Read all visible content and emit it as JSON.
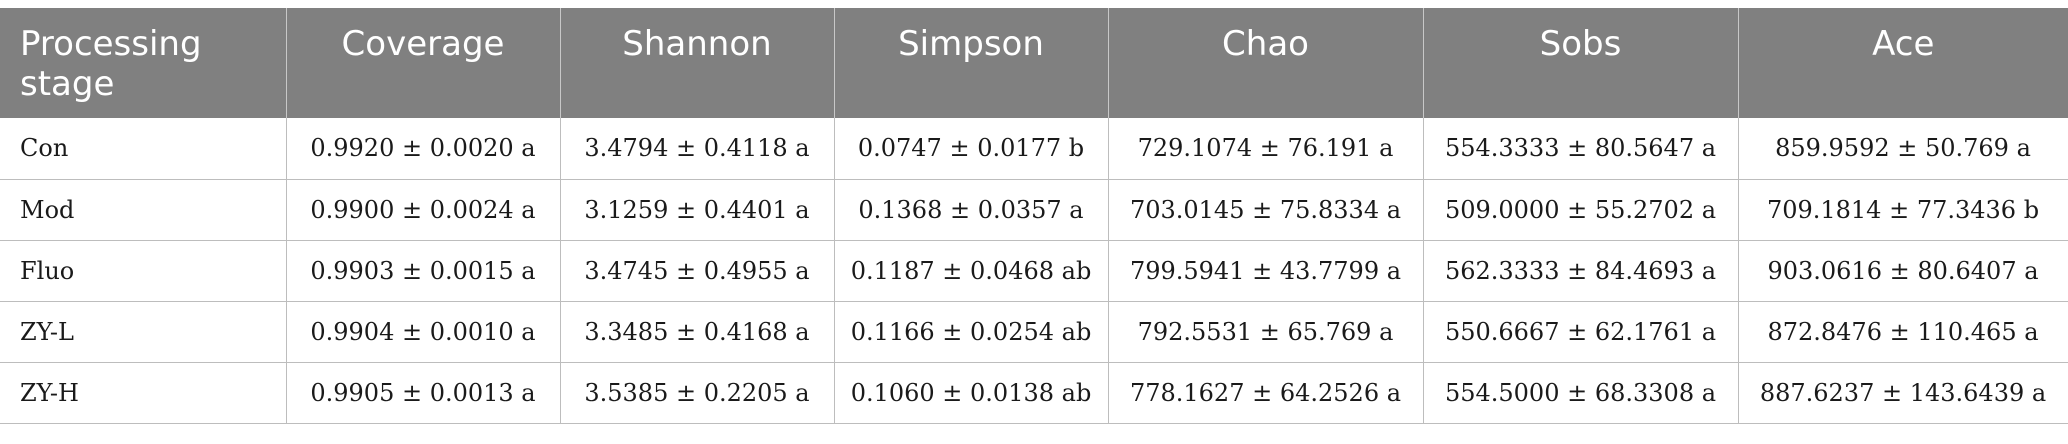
{
  "table": {
    "headers": [
      "Processing stage",
      "Coverage",
      "Shannon",
      "Simpson",
      "Chao",
      "Sobs",
      "Ace"
    ],
    "rows": [
      [
        "Con",
        "0.9920 ± 0.0020 a",
        "3.4794 ± 0.4118 a",
        "0.0747 ± 0.0177 b",
        "729.1074 ± 76.191 a",
        "554.3333 ± 80.5647 a",
        "859.9592 ± 50.769 a"
      ],
      [
        "Mod",
        "0.9900 ± 0.0024 a",
        "3.1259 ± 0.4401 a",
        "0.1368 ± 0.0357 a",
        "703.0145 ± 75.8334 a",
        "509.0000 ± 55.2702 a",
        "709.1814 ± 77.3436 b"
      ],
      [
        "Fluo",
        "0.9903 ± 0.0015 a",
        "3.4745 ± 0.4955 a",
        "0.1187 ± 0.0468 ab",
        "799.5941 ± 43.7799 a",
        "562.3333 ± 84.4693 a",
        "903.0616 ± 80.6407 a"
      ],
      [
        "ZY-L",
        "0.9904 ± 0.0010 a",
        "3.3485 ± 0.4168 a",
        "0.1166 ± 0.0254 ab",
        "792.5531 ± 65.769 a",
        "550.6667 ± 62.1761 a",
        "872.8476 ± 110.465 a"
      ],
      [
        "ZY-H",
        "0.9905 ± 0.0013 a",
        "3.5385 ± 0.2205 a",
        "0.1060 ± 0.0138 ab",
        "778.1627 ± 64.2526 a",
        "554.5000 ± 68.3308 a",
        "887.6237 ± 143.6439 a"
      ]
    ]
  },
  "colors": {
    "header_background": "#808080",
    "header_text": "#ffffff",
    "grid_lines": "#bdbdbd"
  }
}
